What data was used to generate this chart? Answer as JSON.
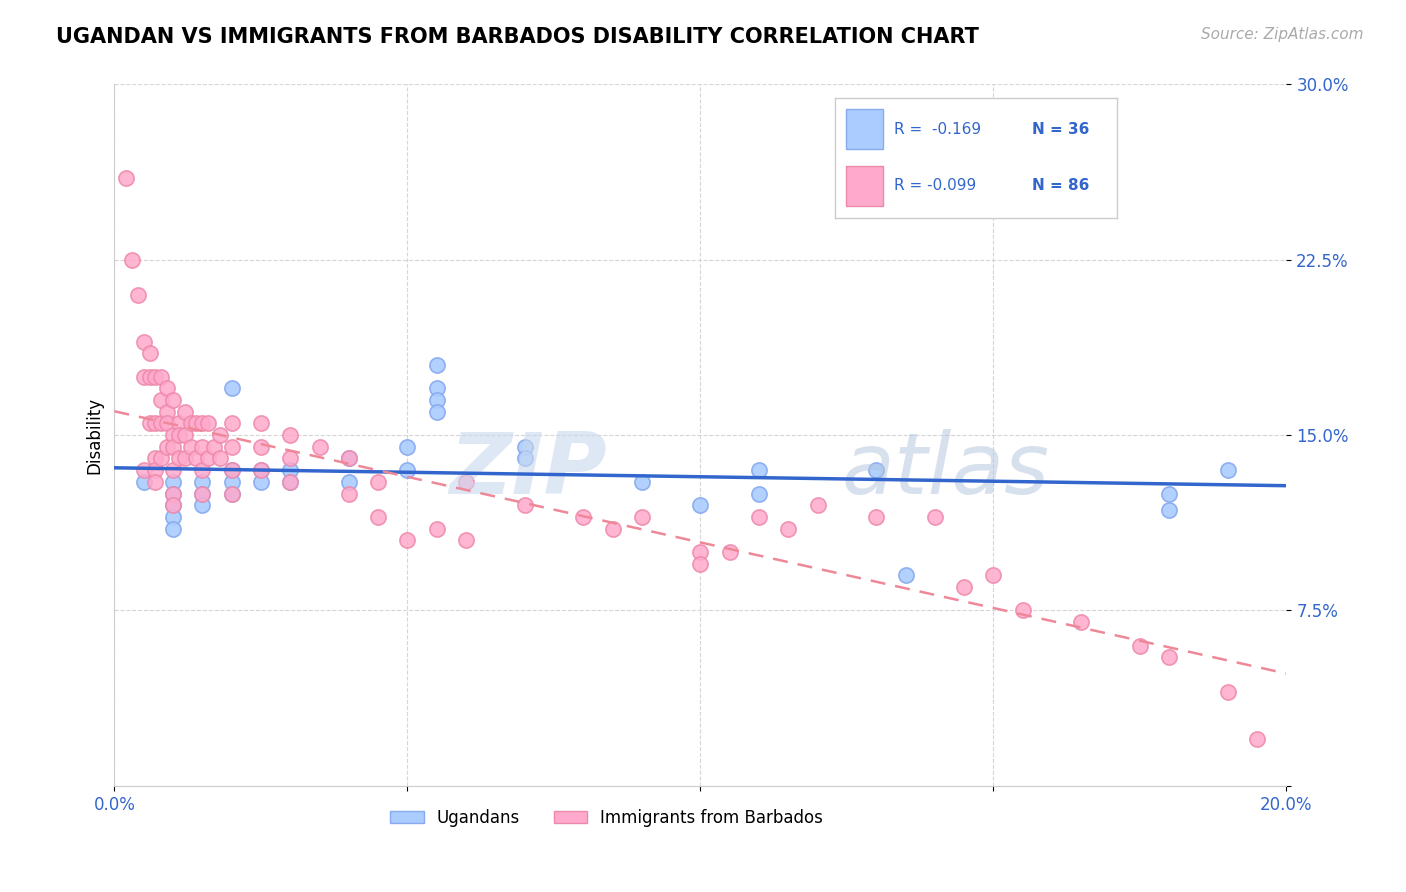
{
  "title": "UGANDAN VS IMMIGRANTS FROM BARBADOS DISABILITY CORRELATION CHART",
  "source": "Source: ZipAtlas.com",
  "ylabel": "Disability",
  "xlim": [
    0.0,
    0.2
  ],
  "ylim": [
    0.0,
    0.3
  ],
  "yticks": [
    0.0,
    0.075,
    0.15,
    0.225,
    0.3
  ],
  "ytick_labels": [
    "",
    "7.5%",
    "15.0%",
    "22.5%",
    "30.0%"
  ],
  "xticks": [
    0.0,
    0.05,
    0.1,
    0.15,
    0.2
  ],
  "xtick_labels": [
    "0.0%",
    "",
    "",
    "",
    "20.0%"
  ],
  "grid_color": "#cccccc",
  "background_color": "#ffffff",
  "ugandan_color": "#aaccff",
  "barbados_color": "#ffaacc",
  "ugandan_edge_color": "#88aaee",
  "barbados_edge_color": "#ee88aa",
  "regression_blue_color": "#3366cc",
  "regression_pink_color": "#ee8899",
  "legend_r_blue": "R =  -0.169",
  "legend_n_blue": "N = 36",
  "legend_r_pink": "R = -0.099",
  "legend_n_pink": "N = 86",
  "watermark_zip": "ZIP",
  "watermark_atlas": "atlas",
  "ugandan_x": [
    0.005,
    0.01,
    0.01,
    0.01,
    0.01,
    0.01,
    0.015,
    0.015,
    0.015,
    0.02,
    0.02,
    0.02,
    0.02,
    0.025,
    0.025,
    0.03,
    0.03,
    0.04,
    0.04,
    0.05,
    0.05,
    0.055,
    0.055,
    0.055,
    0.055,
    0.07,
    0.07,
    0.09,
    0.1,
    0.11,
    0.11,
    0.13,
    0.135,
    0.18,
    0.18,
    0.19
  ],
  "ugandan_y": [
    0.13,
    0.13,
    0.125,
    0.12,
    0.115,
    0.11,
    0.13,
    0.125,
    0.12,
    0.17,
    0.135,
    0.13,
    0.125,
    0.135,
    0.13,
    0.135,
    0.13,
    0.14,
    0.13,
    0.145,
    0.135,
    0.18,
    0.17,
    0.165,
    0.16,
    0.145,
    0.14,
    0.13,
    0.12,
    0.135,
    0.125,
    0.135,
    0.09,
    0.125,
    0.118,
    0.135
  ],
  "barbados_x": [
    0.002,
    0.003,
    0.004,
    0.005,
    0.005,
    0.005,
    0.006,
    0.006,
    0.006,
    0.007,
    0.007,
    0.007,
    0.007,
    0.007,
    0.008,
    0.008,
    0.008,
    0.008,
    0.009,
    0.009,
    0.009,
    0.009,
    0.01,
    0.01,
    0.01,
    0.01,
    0.01,
    0.01,
    0.011,
    0.011,
    0.011,
    0.012,
    0.012,
    0.012,
    0.013,
    0.013,
    0.014,
    0.014,
    0.015,
    0.015,
    0.015,
    0.015,
    0.016,
    0.016,
    0.017,
    0.018,
    0.018,
    0.02,
    0.02,
    0.02,
    0.02,
    0.025,
    0.025,
    0.025,
    0.03,
    0.03,
    0.03,
    0.035,
    0.04,
    0.04,
    0.045,
    0.045,
    0.05,
    0.055,
    0.06,
    0.06,
    0.07,
    0.08,
    0.085,
    0.09,
    0.1,
    0.1,
    0.105,
    0.11,
    0.115,
    0.12,
    0.13,
    0.14,
    0.145,
    0.15,
    0.155,
    0.165,
    0.175,
    0.18,
    0.19,
    0.195
  ],
  "barbados_y": [
    0.26,
    0.225,
    0.21,
    0.19,
    0.175,
    0.135,
    0.185,
    0.175,
    0.155,
    0.175,
    0.155,
    0.14,
    0.135,
    0.13,
    0.175,
    0.165,
    0.155,
    0.14,
    0.17,
    0.16,
    0.155,
    0.145,
    0.165,
    0.15,
    0.145,
    0.135,
    0.125,
    0.12,
    0.155,
    0.15,
    0.14,
    0.16,
    0.15,
    0.14,
    0.155,
    0.145,
    0.155,
    0.14,
    0.155,
    0.145,
    0.135,
    0.125,
    0.155,
    0.14,
    0.145,
    0.15,
    0.14,
    0.155,
    0.145,
    0.135,
    0.125,
    0.155,
    0.145,
    0.135,
    0.15,
    0.14,
    0.13,
    0.145,
    0.14,
    0.125,
    0.13,
    0.115,
    0.105,
    0.11,
    0.13,
    0.105,
    0.12,
    0.115,
    0.11,
    0.115,
    0.1,
    0.095,
    0.1,
    0.115,
    0.11,
    0.12,
    0.115,
    0.115,
    0.085,
    0.09,
    0.075,
    0.07,
    0.06,
    0.055,
    0.04,
    0.02
  ]
}
